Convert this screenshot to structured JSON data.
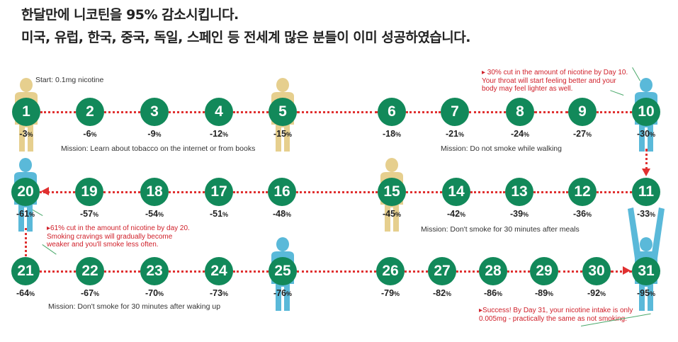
{
  "headline": {
    "line1": "한달만에 니코틴을 95% 감소시킵니다.",
    "line2": "미국, 유럽, 한국, 중국, 독일, 스페인  등 전세계 많은 분들이 이미 성공하였습니다."
  },
  "start_label": "Start: 0.1mg nicotine",
  "days": [
    {
      "day": "1",
      "reduction": "-3"
    },
    {
      "day": "2",
      "reduction": "-6"
    },
    {
      "day": "3",
      "reduction": "-9"
    },
    {
      "day": "4",
      "reduction": "-12"
    },
    {
      "day": "5",
      "reduction": "-15"
    },
    {
      "day": "6",
      "reduction": "-18"
    },
    {
      "day": "7",
      "reduction": "-21"
    },
    {
      "day": "8",
      "reduction": "-24"
    },
    {
      "day": "9",
      "reduction": "-27"
    },
    {
      "day": "10",
      "reduction": "-30"
    },
    {
      "day": "11",
      "reduction": "-33"
    },
    {
      "day": "12",
      "reduction": "-36"
    },
    {
      "day": "13",
      "reduction": "-39"
    },
    {
      "day": "14",
      "reduction": "-42"
    },
    {
      "day": "15",
      "reduction": "-45"
    },
    {
      "day": "16",
      "reduction": "-48"
    },
    {
      "day": "17",
      "reduction": "-51"
    },
    {
      "day": "18",
      "reduction": "-54"
    },
    {
      "day": "19",
      "reduction": "-57"
    },
    {
      "day": "20",
      "reduction": "-61"
    },
    {
      "day": "21",
      "reduction": "-64"
    },
    {
      "day": "22",
      "reduction": "-67"
    },
    {
      "day": "23",
      "reduction": "-70"
    },
    {
      "day": "24",
      "reduction": "-73"
    },
    {
      "day": "25",
      "reduction": "-76"
    },
    {
      "day": "26",
      "reduction": "-79"
    },
    {
      "day": "27",
      "reduction": "-82"
    },
    {
      "day": "28",
      "reduction": "-86"
    },
    {
      "day": "29",
      "reduction": "-89"
    },
    {
      "day": "30",
      "reduction": "-92"
    },
    {
      "day": "31",
      "reduction": "-95"
    }
  ],
  "percent_unit": "%",
  "missions": {
    "m1": "Mission: Learn about tobacco on the internet or from books",
    "m2": "Mission: Do not smoke while walking",
    "m3": "Mission: Don't smoke for 30 minutes after meals",
    "m4": "Mission: Don't smoke for 30 minutes after waking up"
  },
  "notes": {
    "day10": "▸ 30% cut in the amount of nicotine by Day 10. Your throat will start feeling better and your body may feel lighter as well.",
    "day20": "▸61% cut in the amount of nicotine by day 20. Smoking cravings will gradually become weaker and you'll smoke less often.",
    "day31": "▸Success! By Day 31, your nicotine intake is only 0.005mg - practically the same as not smoking."
  },
  "colors": {
    "circle": "#12895a",
    "dots": "#e03030",
    "figure_tan": "#e6cf8e",
    "figure_blue": "#5ab9d9",
    "note_text": "#d0202a"
  }
}
